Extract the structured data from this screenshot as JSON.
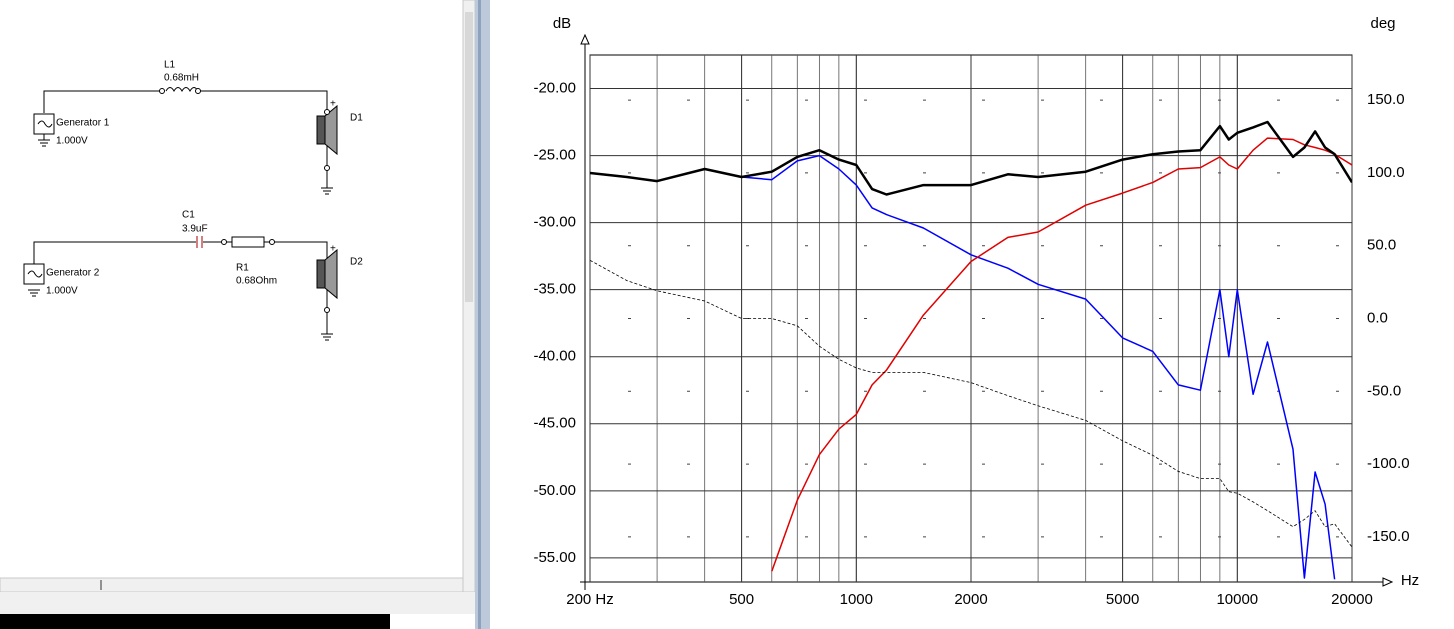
{
  "schematic": {
    "gen1": {
      "name": "Generator 1",
      "value": "1.000V"
    },
    "l1": {
      "name": "L1",
      "value": "0.68mH"
    },
    "d1": {
      "name": "D1"
    },
    "gen2": {
      "name": "Generator 2",
      "value": "1.000V"
    },
    "c1": {
      "name": "C1",
      "value": "3.9uF"
    },
    "r1": {
      "name": "R1",
      "value": "0.68Ohm"
    },
    "d2": {
      "name": "D2"
    }
  },
  "chart_data": {
    "type": "line",
    "y_label": "dB",
    "y2_label": "deg",
    "x_label": "Hz",
    "x_scale": "log",
    "x": [
      200,
      250,
      300,
      400,
      500,
      600,
      700,
      800,
      900,
      1000,
      1100,
      1200,
      1500,
      2000,
      2500,
      3000,
      4000,
      5000,
      6000,
      7000,
      8000,
      9000,
      9500,
      10000,
      11000,
      12000,
      14000,
      15000,
      16000,
      17000,
      18000,
      20000
    ],
    "xlim": [
      200,
      20000
    ],
    "xticks": [
      {
        "value": 200,
        "label": "200 Hz"
      },
      500,
      1000,
      2000,
      5000,
      10000,
      20000
    ],
    "ylim": [
      -56.8,
      -17.5
    ],
    "yticks": [
      {
        "value": -20,
        "label": "-20.00"
      },
      {
        "value": -25,
        "label": "-25.00"
      },
      {
        "value": -30,
        "label": "-30.00"
      },
      {
        "value": -35,
        "label": "-35.00"
      },
      {
        "value": -40,
        "label": "-40.00"
      },
      {
        "value": -45,
        "label": "-45.00"
      },
      {
        "value": -50,
        "label": "-50.00"
      },
      {
        "value": -55,
        "label": "-55.00"
      }
    ],
    "y2lim": [
      -181,
      181
    ],
    "y2ticks": [
      {
        "value": 150,
        "label": "150.0"
      },
      {
        "value": 100,
        "label": "100.0"
      },
      {
        "value": 50,
        "label": "50.0"
      },
      {
        "value": 0,
        "label": "0.0"
      },
      {
        "value": -50,
        "label": "-50.0"
      },
      {
        "value": -100,
        "label": "-100.0"
      },
      {
        "value": -150,
        "label": "-150.0"
      }
    ],
    "grid": true,
    "series": [
      {
        "color": "#0000ff",
        "line_width": 1.5,
        "values": [
          -26.3,
          -26.6,
          -26.9,
          -26.0,
          -26.6,
          -26.8,
          -25.4,
          -25.0,
          -26.0,
          -27.2,
          -28.9,
          -29.4,
          -30.4,
          -32.4,
          -33.4,
          -34.6,
          -35.7,
          -38.6,
          -39.6,
          -42.1,
          -42.5,
          -35.0,
          -40.0,
          -35.0,
          -42.8,
          -38.9,
          -46.9,
          -56.5,
          -48.6,
          -51.0,
          -56.6,
          null
        ]
      },
      {
        "color": "#e00000",
        "line_width": 1.5,
        "values": [
          null,
          null,
          null,
          null,
          null,
          -56.0,
          -50.7,
          -47.3,
          -45.4,
          -44.3,
          -42.1,
          -41.0,
          -36.9,
          -32.9,
          -31.1,
          -30.7,
          -28.7,
          -27.8,
          -27.0,
          -26.0,
          -25.9,
          -25.1,
          -25.7,
          -26.0,
          -24.6,
          -23.7,
          -23.8,
          -24.2,
          -24.4,
          -24.6,
          -24.9,
          -25.7
        ]
      },
      {
        "color": "#000000",
        "line_width": 2.5,
        "values": [
          -26.3,
          -26.6,
          -26.9,
          -26.0,
          -26.6,
          -26.2,
          -25.1,
          -24.6,
          -25.3,
          -25.7,
          -27.5,
          -27.9,
          -27.2,
          -27.2,
          -26.4,
          -26.6,
          -26.2,
          -25.3,
          -24.9,
          -24.7,
          -24.6,
          -22.8,
          -23.8,
          -23.3,
          -22.9,
          -22.5,
          -25.1,
          -24.4,
          -23.2,
          -24.4,
          -24.9,
          -27.0
        ]
      },
      {
        "color": "#000000",
        "line_width": 0.8,
        "line_style": "dashed",
        "axis": "y2",
        "values": [
          40,
          26,
          19,
          12,
          0,
          0,
          -5,
          -19,
          -28,
          -34,
          -37,
          -37,
          -37,
          -44,
          -53,
          -60,
          -70,
          -84,
          -94,
          -105,
          -110,
          -110,
          -119,
          -120,
          -126,
          -132,
          -143,
          -138,
          -132,
          -143,
          -141,
          -157
        ]
      }
    ]
  }
}
